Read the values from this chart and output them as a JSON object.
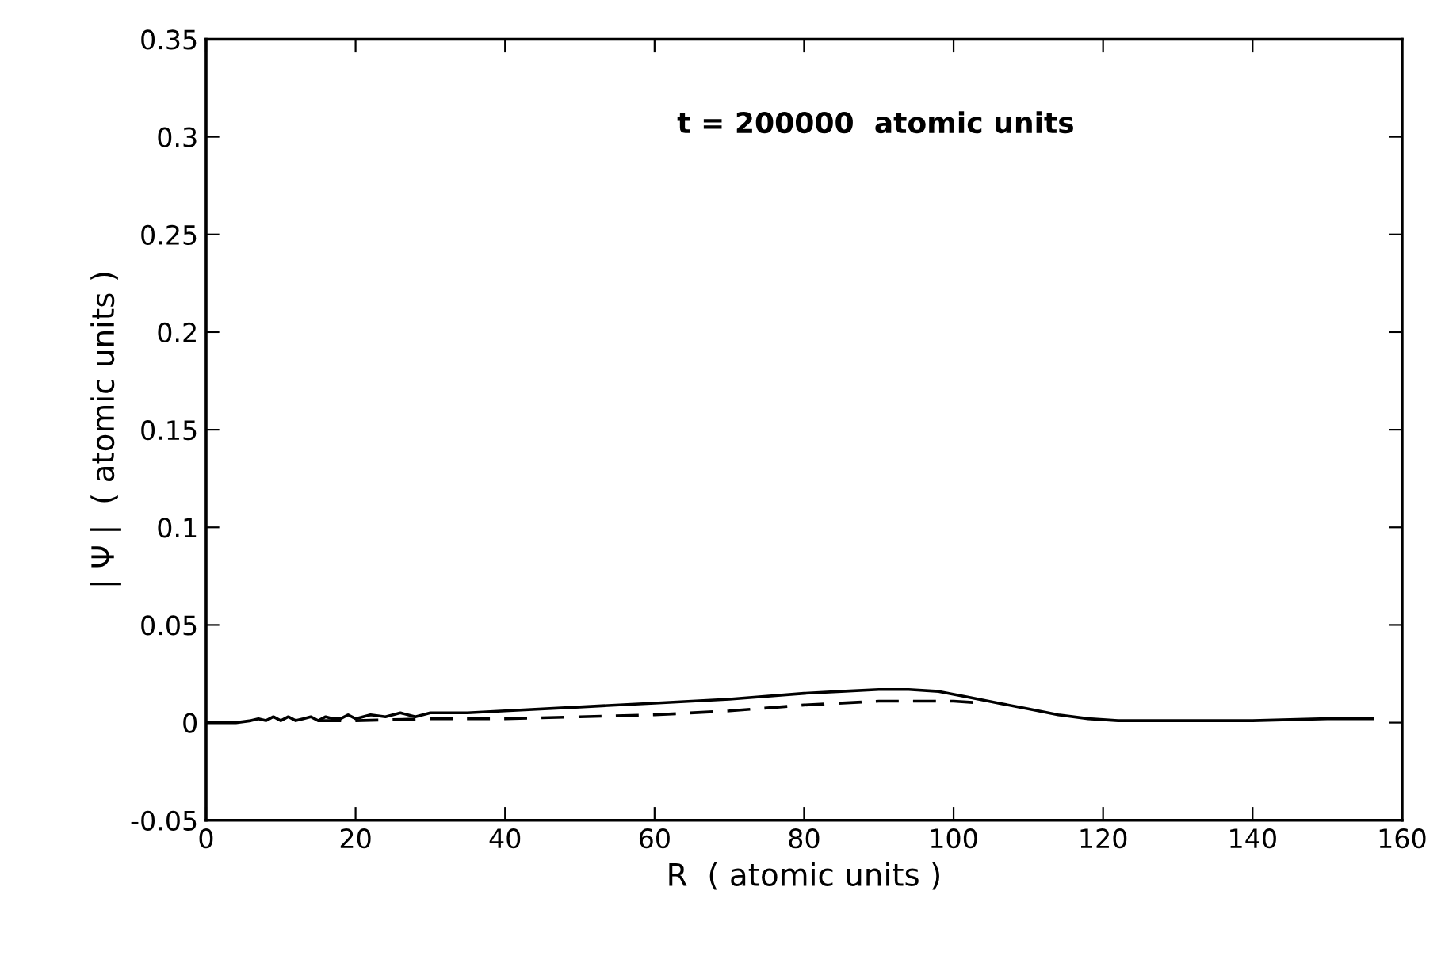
{
  "chart_data": {
    "type": "line",
    "xlabel": "R  ( atomic units )",
    "ylabel": "| Ψ |  ( atomic units )",
    "annotations": [
      "t = 200000  atomic units"
    ],
    "xlim": [
      0,
      160
    ],
    "xticks": [
      0,
      20,
      40,
      60,
      80,
      100,
      120,
      140,
      160
    ],
    "ylim": [
      -0.05,
      0.35
    ],
    "yticks": [
      -0.05,
      0,
      0.05,
      0.1,
      0.15,
      0.2,
      0.25,
      0.3,
      0.35
    ],
    "grid": false,
    "series": [
      {
        "color": "#000000",
        "line_style": "solid",
        "x": [
          0,
          4,
          6,
          7,
          8,
          9,
          10,
          11,
          12,
          13,
          14,
          15,
          16,
          17,
          18,
          19,
          20,
          22,
          24,
          26,
          28,
          30,
          35,
          40,
          50,
          60,
          70,
          80,
          85,
          90,
          94,
          98,
          102,
          106,
          110,
          114,
          118,
          122,
          130,
          140,
          150,
          156
        ],
        "values": [
          0,
          0,
          0.001,
          0.002,
          0.001,
          0.003,
          0.001,
          0.003,
          0.001,
          0.002,
          0.003,
          0.001,
          0.003,
          0.002,
          0.002,
          0.004,
          0.002,
          0.004,
          0.003,
          0.005,
          0.003,
          0.005,
          0.005,
          0.006,
          0.008,
          0.01,
          0.012,
          0.015,
          0.016,
          0.017,
          0.017,
          0.016,
          0.013,
          0.01,
          0.007,
          0.004,
          0.002,
          0.001,
          0.001,
          0.001,
          0.002,
          0.002
        ]
      },
      {
        "color": "#000000",
        "line_style": "dashed",
        "x": [
          15,
          20,
          30,
          40,
          50,
          60,
          70,
          80,
          90,
          95,
          100,
          104
        ],
        "values": [
          0.001,
          0.001,
          0.002,
          0.002,
          0.003,
          0.004,
          0.006,
          0.009,
          0.011,
          0.011,
          0.011,
          0.01
        ]
      }
    ]
  }
}
